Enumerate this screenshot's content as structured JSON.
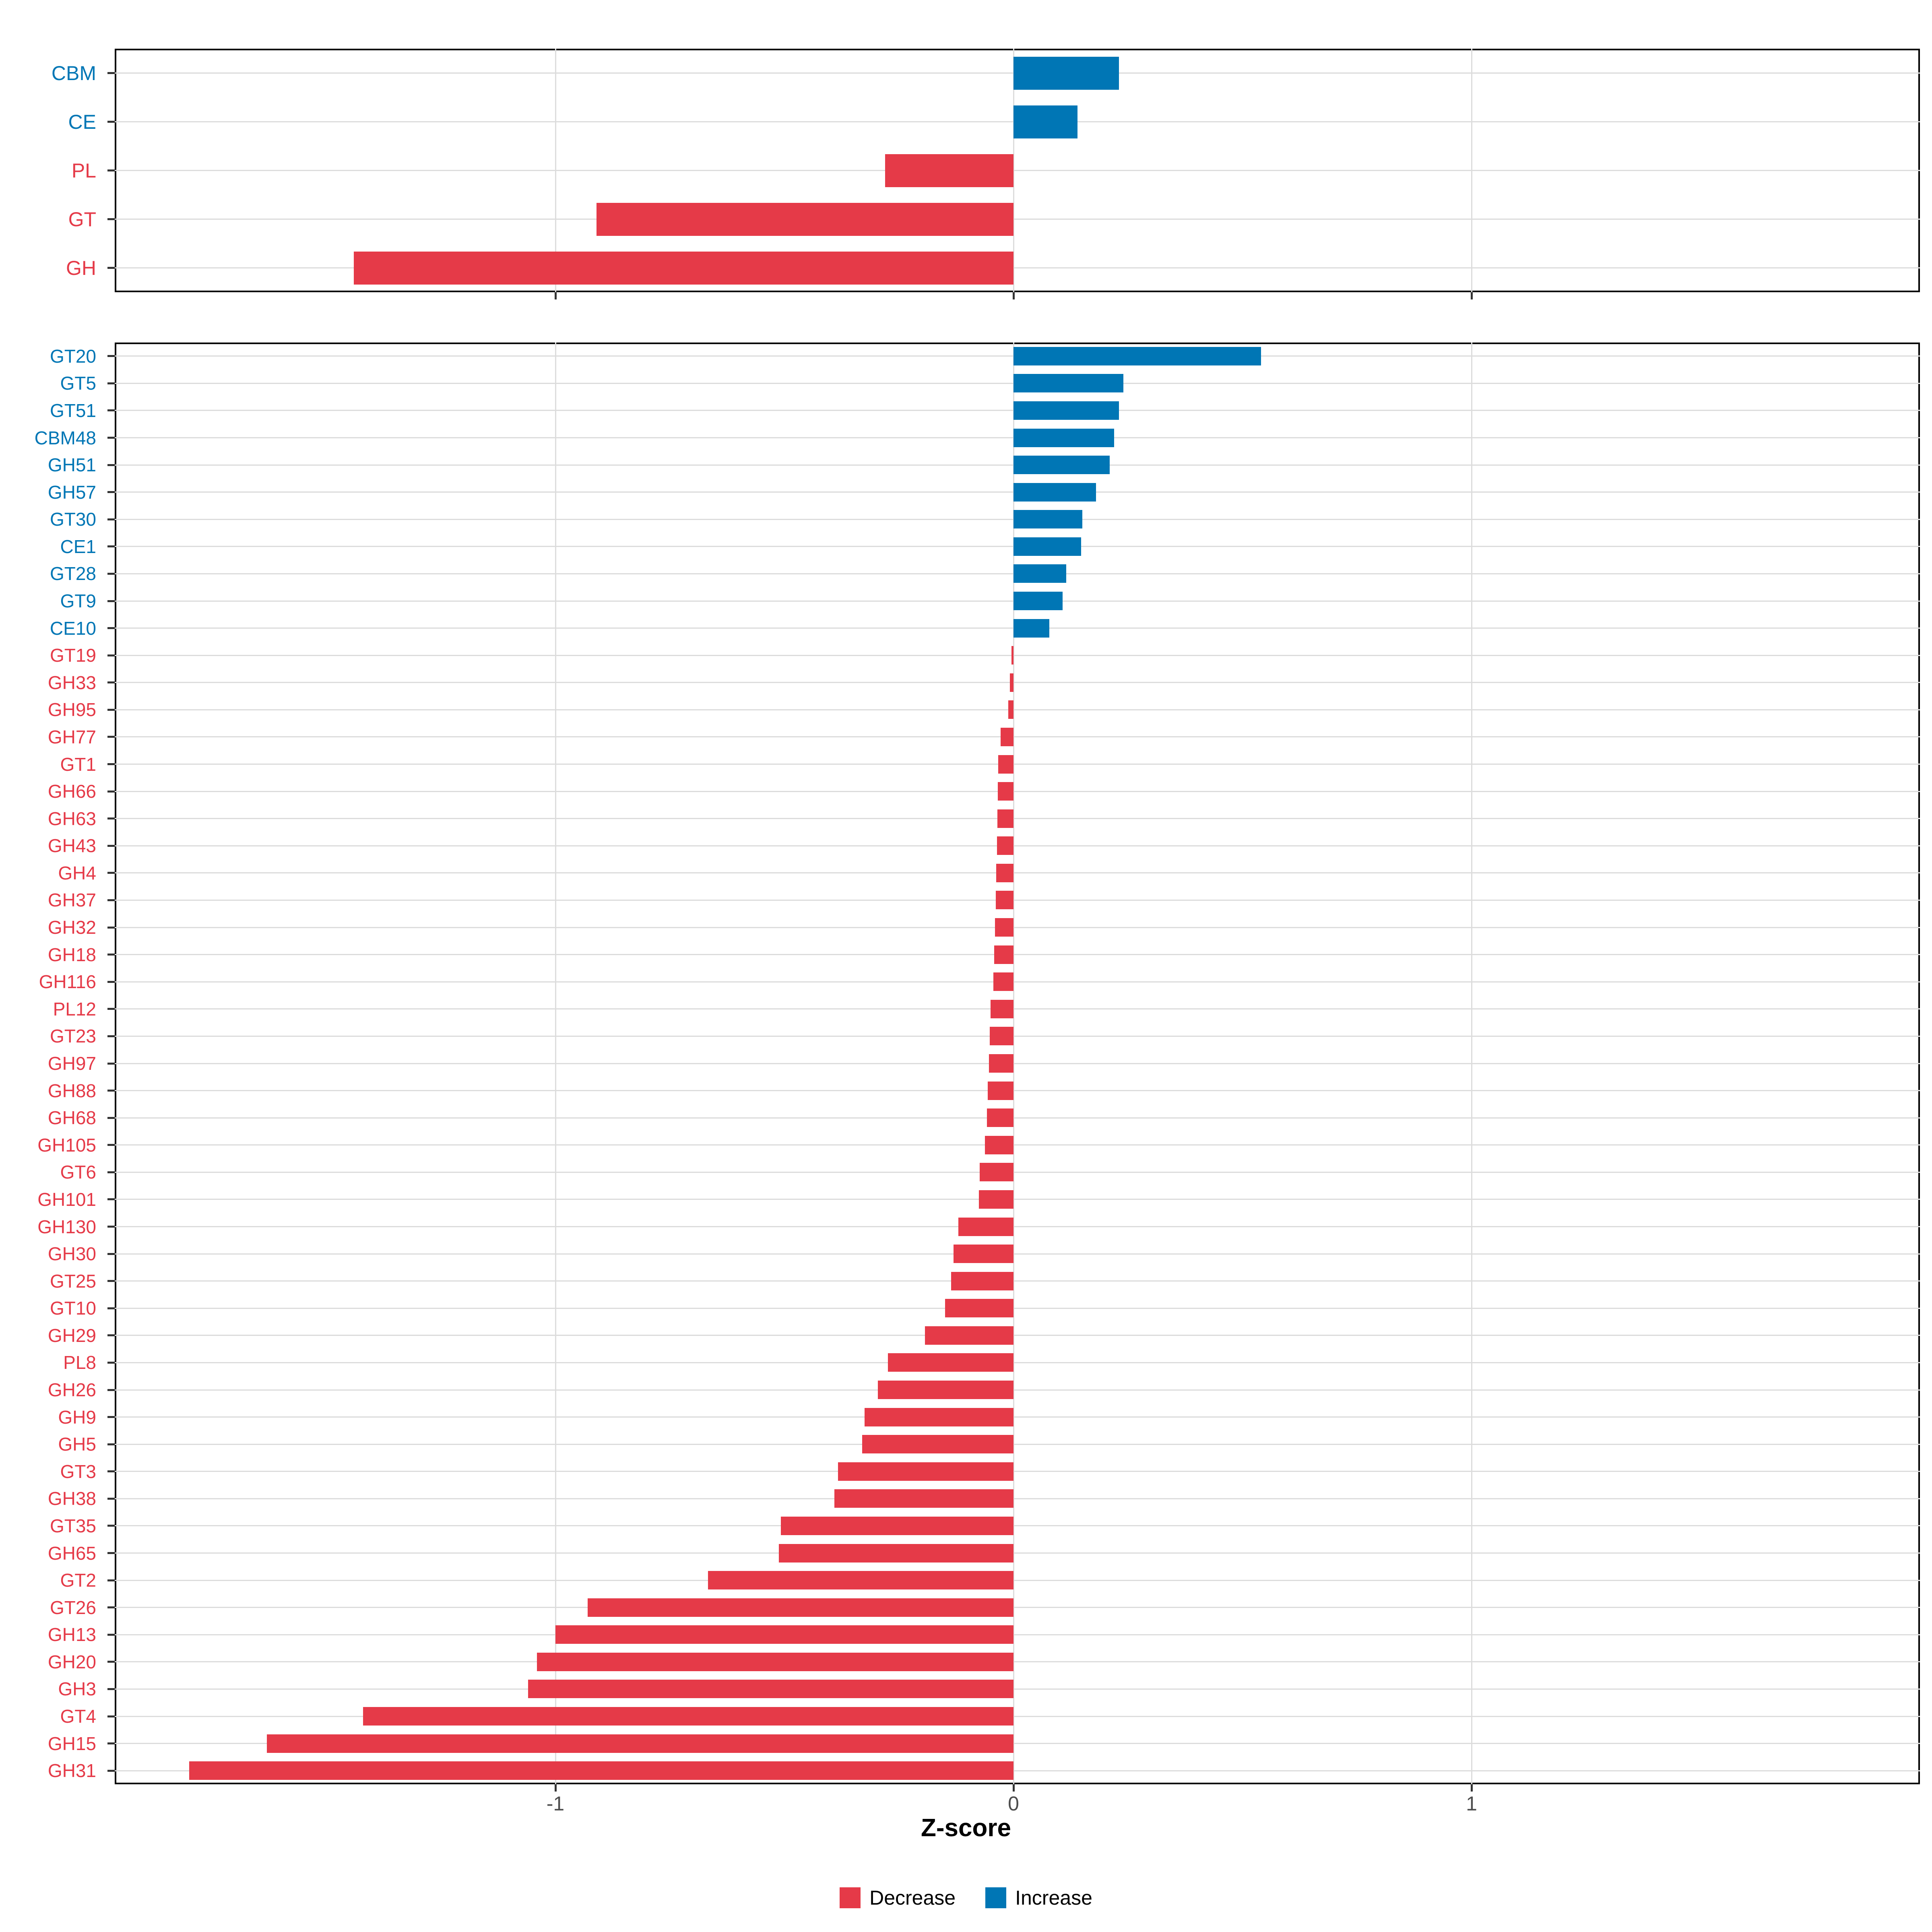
{
  "chart_data": [
    {
      "type": "bar",
      "orientation": "horizontal",
      "panel": "cazyme-classes",
      "categories": [
        "CBM",
        "CE",
        "PL",
        "GT",
        "GH"
      ],
      "values": [
        0.23,
        0.14,
        -0.28,
        -0.91,
        -1.44
      ],
      "xlim": [
        -1.96,
        1.98
      ],
      "grid": "major-only",
      "bar_colors_rule": "blue if value>0 else red"
    },
    {
      "type": "bar",
      "orientation": "horizontal",
      "panel": "cazyme-families",
      "categories": [
        "GT20",
        "GT5",
        "GT51",
        "CBM48",
        "GH51",
        "GH57",
        "GT30",
        "CE1",
        "GT28",
        "GT9",
        "CE10",
        "GT19",
        "GH33",
        "GH95",
        "GH77",
        "GT1",
        "GH66",
        "GH63",
        "GH43",
        "GH4",
        "GH37",
        "GH32",
        "GH18",
        "GH116",
        "PL12",
        "GT23",
        "GH97",
        "GH88",
        "GH68",
        "GH105",
        "GT6",
        "GH101",
        "GH130",
        "GH30",
        "GT25",
        "GT10",
        "GH29",
        "PL8",
        "GH26",
        "GH9",
        "GH5",
        "GT3",
        "GH38",
        "GT35",
        "GH65",
        "GT2",
        "GT26",
        "GH13",
        "GH20",
        "GH3",
        "GT4",
        "GH15",
        "GH31"
      ],
      "values": [
        0.54,
        0.24,
        0.23,
        0.22,
        0.21,
        0.18,
        0.15,
        0.148,
        0.115,
        0.107,
        0.078,
        -0.004,
        -0.008,
        -0.011,
        -0.028,
        -0.033,
        -0.034,
        -0.035,
        -0.036,
        -0.038,
        -0.039,
        -0.04,
        -0.042,
        -0.044,
        -0.05,
        -0.052,
        -0.054,
        -0.056,
        -0.058,
        -0.062,
        -0.074,
        -0.076,
        -0.12,
        -0.131,
        -0.136,
        -0.149,
        -0.193,
        -0.274,
        -0.296,
        -0.325,
        -0.33,
        -0.383,
        -0.391,
        -0.508,
        -0.512,
        -0.667,
        -0.93,
        -1.0,
        -1.04,
        -1.06,
        -1.42,
        -1.63,
        -1.8
      ],
      "xlim": [
        -1.96,
        1.98
      ],
      "grid": "major-only",
      "bar_colors_rule": "blue if value>0 else red"
    }
  ],
  "x_axis": {
    "title": "Z-score",
    "ticks": [
      -1,
      0,
      1
    ],
    "tick_labels": [
      "-1",
      "0",
      "1"
    ]
  },
  "legend": {
    "items": [
      {
        "label": "Decrease",
        "color": "#e53a48"
      },
      {
        "label": "Increase",
        "color": "#0076b5"
      }
    ]
  },
  "colors": {
    "decrease": "#e53a48",
    "increase": "#0076b5",
    "gridline": "#dcdcdc",
    "tick": "#333333",
    "tick_label": "#4d4d4d",
    "panel_border": "#000000"
  }
}
